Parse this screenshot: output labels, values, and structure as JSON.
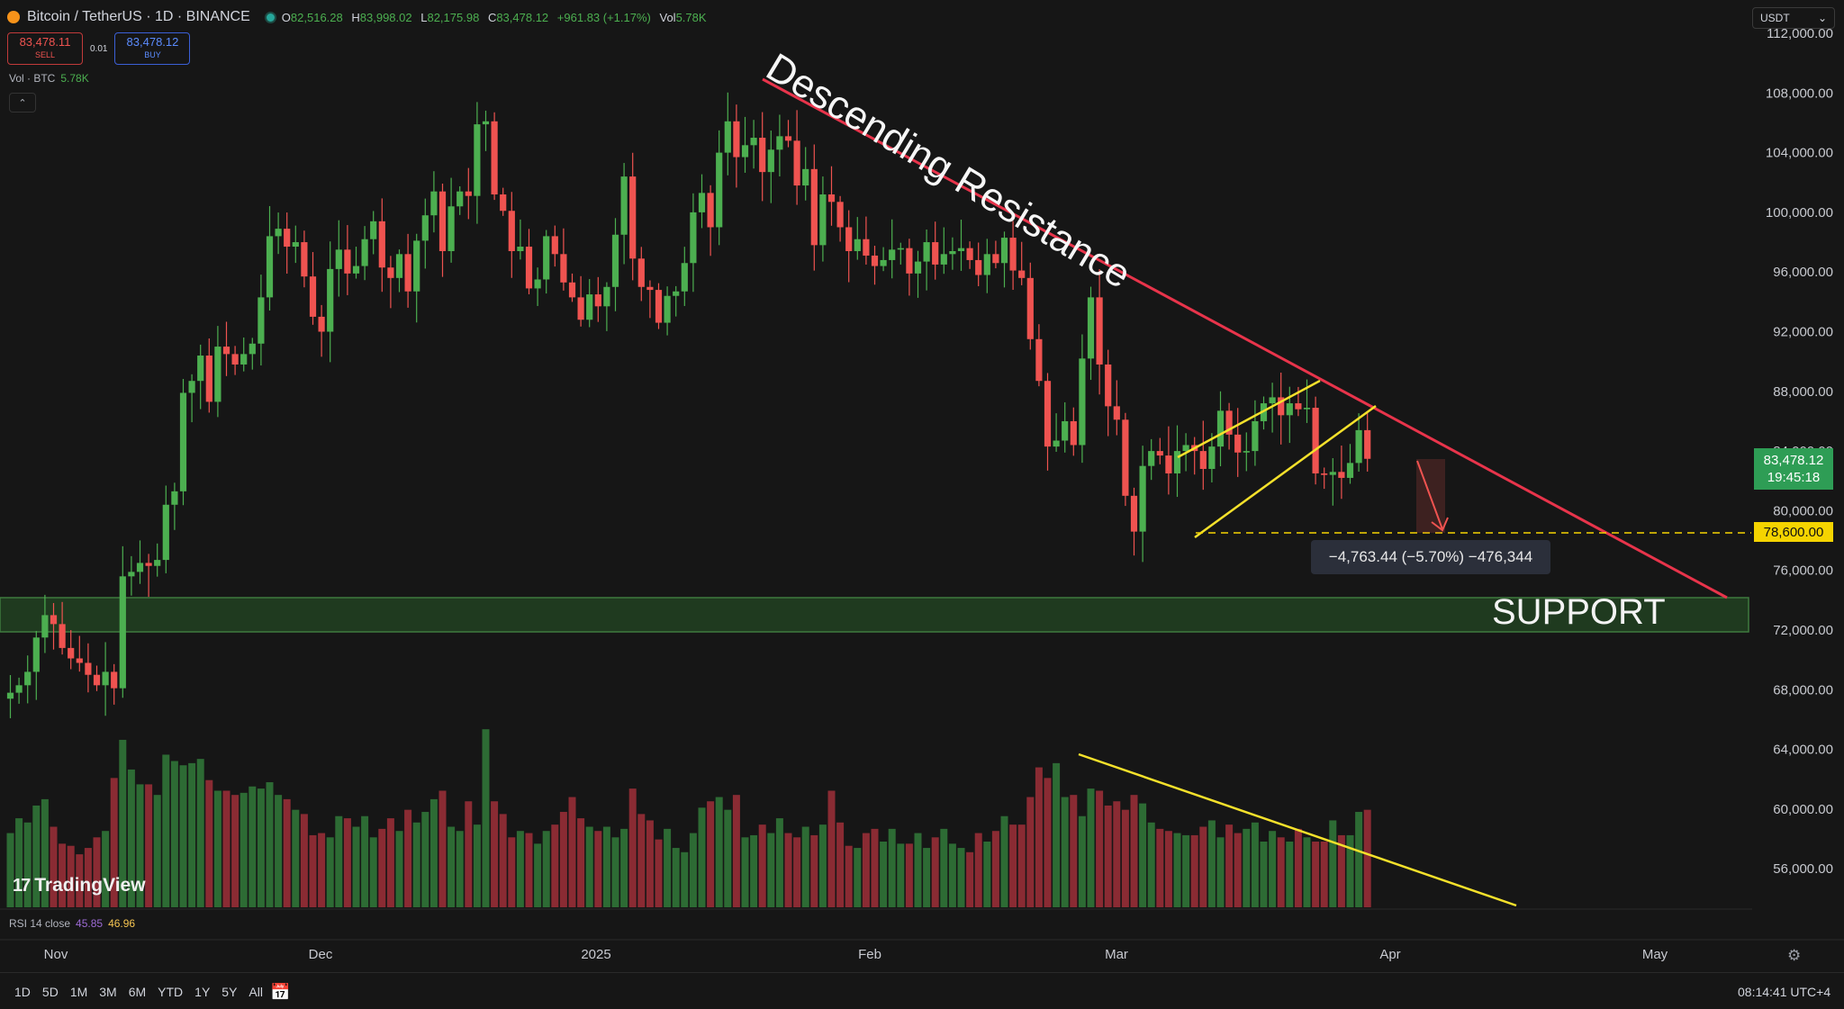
{
  "header": {
    "symbol": "Bitcoin / TetherUS · 1D · BINANCE",
    "open_label": "O",
    "open": "82,516.28",
    "high_label": "H",
    "high": "83,998.02",
    "low_label": "L",
    "low": "82,175.98",
    "close_label": "C",
    "close": "83,478.12",
    "change": "+961.83 (+1.17%)",
    "vol_label": "Vol",
    "vol": "5.78K"
  },
  "trade": {
    "sell_price": "83,478.11",
    "sell_label": "SELL",
    "spread": "0.01",
    "buy_price": "83,478.12",
    "buy_label": "BUY"
  },
  "volume_legend": {
    "label": "Vol · BTC",
    "value": "5.78K"
  },
  "collapse_glyph": "⌃",
  "currency": {
    "label": "USDT",
    "glyph": "⌄"
  },
  "price_tag": {
    "price": "83,478.12",
    "countdown": "19:45:18"
  },
  "level_tag": "78,600.00",
  "measure": "−4,763.44 (−5.70%) −476,344",
  "support_label": "SUPPORT",
  "resistance_label": "Descending Resistance",
  "logo": {
    "mark": "17",
    "text": "TradingView"
  },
  "rsi": {
    "label": "RSI 14 close",
    "v1": "45.85",
    "v2": "46.96"
  },
  "months": [
    "Nov",
    "Dec",
    "2025",
    "Feb",
    "Mar",
    "Apr",
    "May"
  ],
  "ranges": [
    "1D",
    "5D",
    "1M",
    "3M",
    "6M",
    "YTD",
    "1Y",
    "5Y",
    "All"
  ],
  "calendar_glyph": "📅",
  "clock": "08:14:41 UTC+4",
  "settings_glyph": "⚙",
  "colors": {
    "up": "#4caf50",
    "down": "#ef5350",
    "resistance": "#e8344b",
    "trend": "#f5e12b",
    "support_fill": "#1f3a1f"
  },
  "chart_data": {
    "type": "candlestick",
    "ylim": [
      53000,
      112000
    ],
    "y_ticks": [
      56000,
      60000,
      64000,
      68000,
      72000,
      76000,
      80000,
      84000,
      88000,
      92000,
      96000,
      100000,
      104000,
      108000,
      112000
    ],
    "y_tick_labels": [
      "56,000.00",
      "60,000.00",
      "64,000.00",
      "68,000.00",
      "72,000.00",
      "76,000.00",
      "80,000.00",
      "84,000.00",
      "88,000.00",
      "92,000.00",
      "96,000.00",
      "100,000.00",
      "104,000.00",
      "108,000.00",
      "112,000.00"
    ],
    "x_start": "2024-10-26",
    "close": [
      67800,
      68300,
      69200,
      71500,
      73000,
      72400,
      70800,
      70100,
      69800,
      69000,
      68300,
      69200,
      68100,
      75600,
      75900,
      76500,
      76300,
      76700,
      80400,
      81300,
      87900,
      88700,
      90400,
      87300,
      91000,
      90500,
      89800,
      90500,
      91200,
      94300,
      98400,
      98900,
      97700,
      98000,
      95700,
      93000,
      92000,
      96200,
      97500,
      95900,
      96400,
      98200,
      99400,
      96300,
      95600,
      97200,
      94700,
      98100,
      99800,
      101400,
      97400,
      100400,
      101400,
      101100,
      105900,
      106100,
      101200,
      100100,
      97400,
      97700,
      94900,
      95500,
      98400,
      97200,
      95300,
      94300,
      92800,
      94500,
      93700,
      95000,
      98500,
      102400,
      96900,
      95000,
      94800,
      92600,
      94400,
      94700,
      96600,
      100000,
      101300,
      99000,
      104000,
      106100,
      103700,
      104500,
      105000,
      102700,
      104200,
      105100,
      104800,
      101800,
      102900,
      97800,
      101200,
      100700,
      99000,
      97400,
      98200,
      97100,
      96400,
      96800,
      97500,
      97600,
      95900,
      96700,
      98000,
      96500,
      97200,
      97400,
      97600,
      96800,
      95800,
      97200,
      96600,
      98300,
      96100,
      95600,
      91500,
      88700,
      84300,
      84700,
      86000,
      84400,
      90200,
      94300,
      89800,
      87000,
      86100,
      81000,
      78600,
      83000,
      84000,
      83700,
      82500,
      84000,
      84400,
      84000,
      82800,
      84300,
      86700,
      85100,
      83900,
      84000,
      86000,
      87200,
      87600,
      86400,
      87200,
      86800,
      86900,
      82500,
      82400,
      82600,
      82200,
      83200,
      85400,
      83478
    ],
    "volume": [
      35000,
      42000,
      40000,
      48000,
      51000,
      38000,
      30000,
      29000,
      25000,
      28000,
      33000,
      36000,
      61000,
      79000,
      65000,
      58000,
      58000,
      53000,
      72000,
      69000,
      67000,
      68000,
      70000,
      60000,
      55000,
      55000,
      53000,
      54000,
      57000,
      56000,
      59000,
      53000,
      51000,
      46000,
      44000,
      34000,
      35000,
      33000,
      43000,
      42000,
      38000,
      43000,
      33000,
      37000,
      42000,
      36000,
      46000,
      40000,
      45000,
      51000,
      55000,
      38000,
      36000,
      50000,
      39000,
      84000,
      50000,
      44000,
      33000,
      36000,
      35000,
      30000,
      36000,
      39000,
      45000,
      52000,
      42000,
      38000,
      36000,
      38000,
      33000,
      37000,
      56000,
      44000,
      41000,
      32000,
      37000,
      28000,
      26000,
      35000,
      47000,
      50000,
      52000,
      46000,
      53000,
      33000,
      34000,
      39000,
      35000,
      42000,
      35000,
      33000,
      38000,
      34000,
      39000,
      55000,
      40000,
      29000,
      28000,
      35000,
      37000,
      31000,
      37000,
      30000,
      30000,
      35000,
      28000,
      33000,
      37000,
      30000,
      28000,
      26000,
      35000,
      31000,
      36000,
      43000,
      39000,
      39000,
      52000,
      66000,
      61000,
      68000,
      52000,
      53000,
      43000,
      56000,
      55000,
      48000,
      50000,
      46000,
      53000,
      49000,
      40000,
      37000,
      36000,
      35000,
      34000,
      34000,
      38000,
      41000,
      33000,
      39000,
      35000,
      37000,
      40000,
      31000,
      36000,
      33000,
      31000,
      37000,
      33000,
      31000,
      31000,
      41000,
      34000,
      34000,
      45000,
      46000
    ]
  }
}
